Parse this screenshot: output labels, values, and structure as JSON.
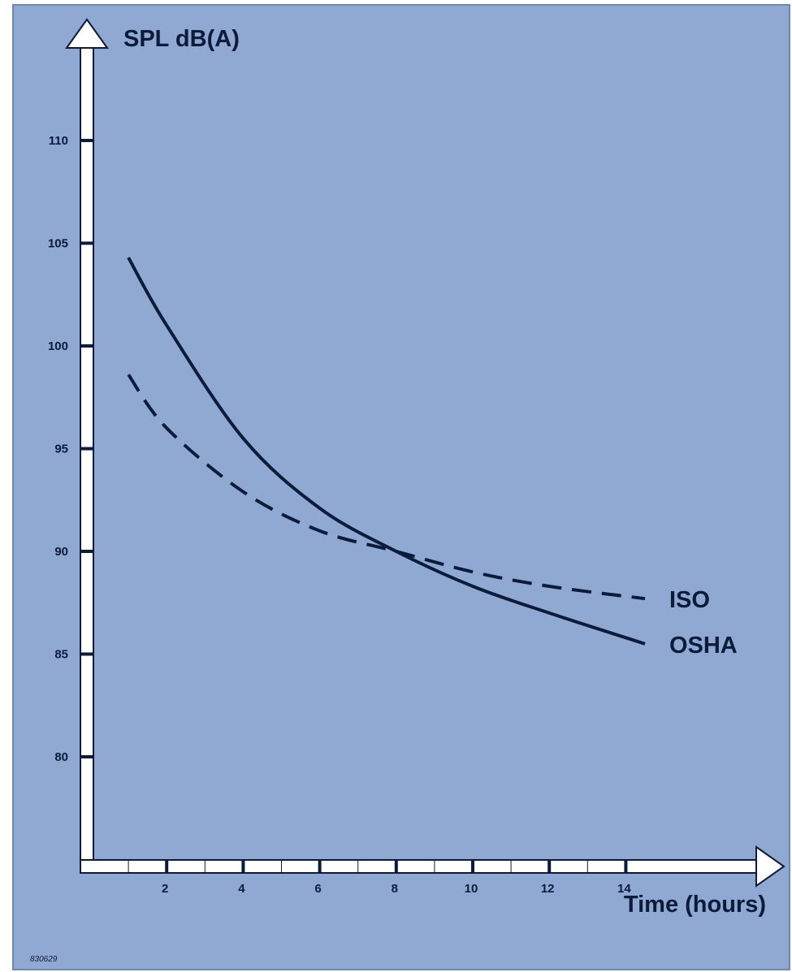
{
  "colors": {
    "panel": "#8fa9d2",
    "panel_border": "#6d87b3",
    "ink": "#0d1b3a",
    "axis_fill": "#ffffff",
    "axis_stroke": "#0d1b3a"
  },
  "chart_data": {
    "type": "line",
    "ylabel": "SPL dB(A)",
    "xlabel": "Time (hours)",
    "ylim": [
      75,
      115
    ],
    "xlim": [
      0,
      17
    ],
    "y_ticks": [
      80,
      85,
      90,
      95,
      100,
      105,
      110
    ],
    "x_ticks": [
      2,
      4,
      6,
      8,
      10,
      12,
      14
    ],
    "grid": false,
    "series": [
      {
        "name": "OSHA",
        "line_style": "solid",
        "x": [
          1,
          2,
          4,
          6,
          8,
          10,
          12,
          14.5
        ],
        "y": [
          104.3,
          101.0,
          95.5,
          92.1,
          90.0,
          88.3,
          87.0,
          85.5
        ]
      },
      {
        "name": "ISO",
        "line_style": "dashed",
        "x": [
          1,
          2,
          4,
          6,
          8,
          10,
          12,
          14.5
        ],
        "y": [
          98.6,
          96.0,
          92.9,
          91.0,
          90.0,
          89.0,
          88.3,
          87.7
        ]
      }
    ],
    "annotation": "830629"
  }
}
